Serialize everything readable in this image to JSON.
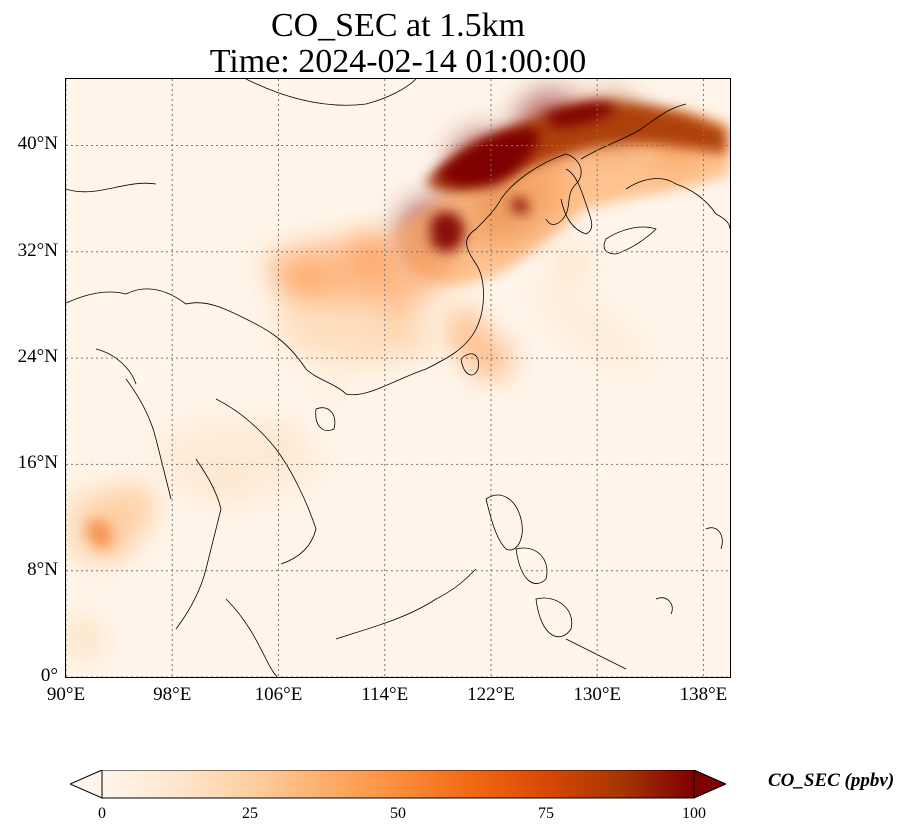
{
  "title": {
    "line1": "CO_SEC at 1.5km",
    "line2": "Time: 2024-02-14 01:00:00"
  },
  "map": {
    "extent": {
      "lon_min": 90,
      "lon_max": 140,
      "lat_min": 0,
      "lat_max": 45
    },
    "gridlines": "dotted",
    "lat_ticks": [
      {
        "value": 0,
        "label": "0°"
      },
      {
        "value": 8,
        "label": "8°N"
      },
      {
        "value": 16,
        "label": "16°N"
      },
      {
        "value": 24,
        "label": "24°N"
      },
      {
        "value": 32,
        "label": "32°N"
      },
      {
        "value": 40,
        "label": "40°N"
      }
    ],
    "lon_ticks": [
      {
        "value": 90,
        "label": "90°E"
      },
      {
        "value": 98,
        "label": "98°E"
      },
      {
        "value": 106,
        "label": "106°E"
      },
      {
        "value": 114,
        "label": "114°E"
      },
      {
        "value": 122,
        "label": "122°E"
      },
      {
        "value": 130,
        "label": "130°E"
      },
      {
        "value": 138,
        "label": "138°E"
      }
    ],
    "background_color": "#fff5ea",
    "plume_regions": [
      {
        "lon": 121.5,
        "lat": 38.5,
        "value": 100
      },
      {
        "lon": 126.5,
        "lat": 41.5,
        "value": 100
      },
      {
        "lon": 131,
        "lat": 41.5,
        "value": 85
      },
      {
        "lon": 136,
        "lat": 40,
        "value": 65
      },
      {
        "lon": 117.5,
        "lat": 33.5,
        "value": 95
      },
      {
        "lon": 122,
        "lat": 34.5,
        "value": 70
      },
      {
        "lon": 124,
        "lat": 35.5,
        "value": 85
      },
      {
        "lon": 126,
        "lat": 37,
        "value": 60
      },
      {
        "lon": 113,
        "lat": 32,
        "value": 45
      },
      {
        "lon": 108,
        "lat": 29.5,
        "value": 40
      },
      {
        "lon": 115,
        "lat": 27,
        "value": 35
      },
      {
        "lon": 120,
        "lat": 26.5,
        "value": 40
      },
      {
        "lon": 122,
        "lat": 24,
        "value": 45
      },
      {
        "lon": 128,
        "lat": 31,
        "value": 30
      },
      {
        "lon": 93,
        "lat": 11,
        "value": 55
      },
      {
        "lon": 95,
        "lat": 13,
        "value": 35
      },
      {
        "lon": 102,
        "lat": 15,
        "value": 25
      },
      {
        "lon": 106,
        "lat": 18,
        "value": 20
      },
      {
        "lon": 110,
        "lat": 22,
        "value": 15
      },
      {
        "lon": 91.5,
        "lat": 3,
        "value": 15
      }
    ],
    "coastline_color": "#000000"
  },
  "colorbar": {
    "label": "CO_SEC (ppbv)",
    "min": 0,
    "max": 100,
    "extend": "both",
    "ticks": [
      "0",
      "25",
      "50",
      "75",
      "100"
    ],
    "colors": [
      "#fff5eb",
      "#fee6ce",
      "#fdd0a2",
      "#fdae6b",
      "#fd8d3c",
      "#f16913",
      "#d94801",
      "#a63603",
      "#7f0000"
    ]
  }
}
